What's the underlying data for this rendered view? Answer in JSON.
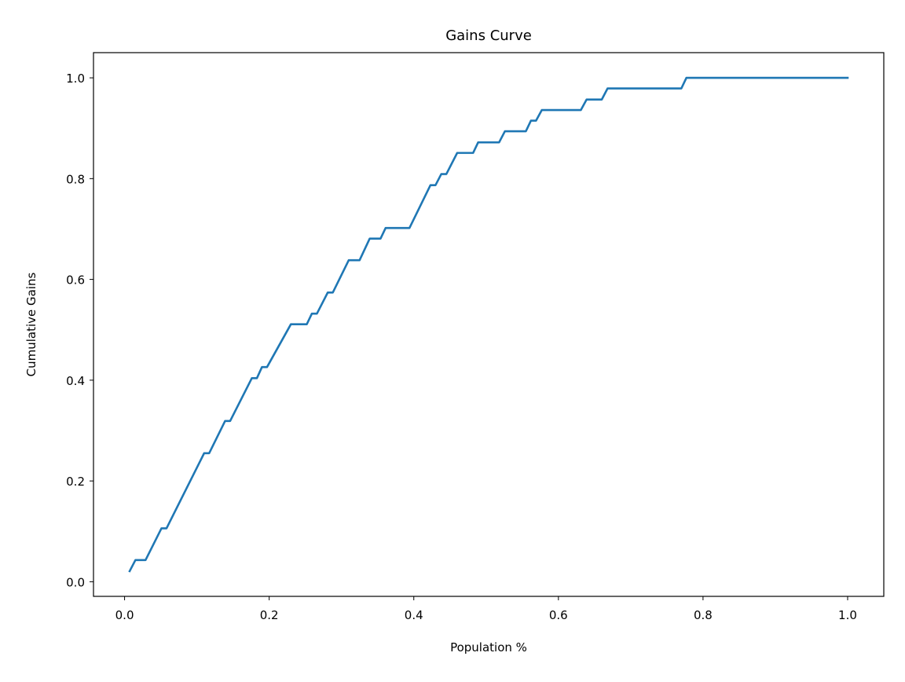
{
  "colors": {
    "series_line": "#1f77b4",
    "axes": "#000000",
    "background": "#ffffff"
  },
  "chart_data": {
    "type": "line",
    "title": "Gains Curve",
    "xlabel": "Population %",
    "ylabel": "Cumulative Gains",
    "xlim": [
      -0.043,
      1.05
    ],
    "ylim": [
      -0.029,
      1.05
    ],
    "x_ticks": [
      0.0,
      0.2,
      0.4,
      0.6,
      0.8,
      1.0
    ],
    "x_tick_labels": [
      "0.0",
      "0.2",
      "0.4",
      "0.6",
      "0.8",
      "1.0"
    ],
    "y_ticks": [
      0.0,
      0.2,
      0.4,
      0.6,
      0.8,
      1.0
    ],
    "y_tick_labels": [
      "0.0",
      "0.2",
      "0.4",
      "0.6",
      "0.8",
      "1.0"
    ],
    "grid": false,
    "legend": "none",
    "series": [
      {
        "values": [
          [
            0.007,
            0.021
          ],
          [
            0.015,
            0.043
          ],
          [
            0.029,
            0.043
          ],
          [
            0.051,
            0.106
          ],
          [
            0.058,
            0.106
          ],
          [
            0.11,
            0.255
          ],
          [
            0.117,
            0.255
          ],
          [
            0.139,
            0.319
          ],
          [
            0.146,
            0.319
          ],
          [
            0.176,
            0.404
          ],
          [
            0.183,
            0.404
          ],
          [
            0.19,
            0.426
          ],
          [
            0.197,
            0.426
          ],
          [
            0.23,
            0.511
          ],
          [
            0.252,
            0.511
          ],
          [
            0.259,
            0.532
          ],
          [
            0.266,
            0.532
          ],
          [
            0.281,
            0.574
          ],
          [
            0.288,
            0.574
          ],
          [
            0.31,
            0.638
          ],
          [
            0.325,
            0.638
          ],
          [
            0.339,
            0.681
          ],
          [
            0.354,
            0.681
          ],
          [
            0.361,
            0.702
          ],
          [
            0.394,
            0.702
          ],
          [
            0.423,
            0.787
          ],
          [
            0.43,
            0.787
          ],
          [
            0.438,
            0.809
          ],
          [
            0.445,
            0.809
          ],
          [
            0.46,
            0.851
          ],
          [
            0.482,
            0.851
          ],
          [
            0.489,
            0.872
          ],
          [
            0.518,
            0.872
          ],
          [
            0.526,
            0.894
          ],
          [
            0.555,
            0.894
          ],
          [
            0.562,
            0.915
          ],
          [
            0.569,
            0.915
          ],
          [
            0.577,
            0.936
          ],
          [
            0.631,
            0.936
          ],
          [
            0.639,
            0.957
          ],
          [
            0.66,
            0.957
          ],
          [
            0.668,
            0.979
          ],
          [
            0.77,
            0.979
          ],
          [
            0.777,
            1.0
          ],
          [
            1.0,
            1.0
          ]
        ]
      }
    ]
  }
}
